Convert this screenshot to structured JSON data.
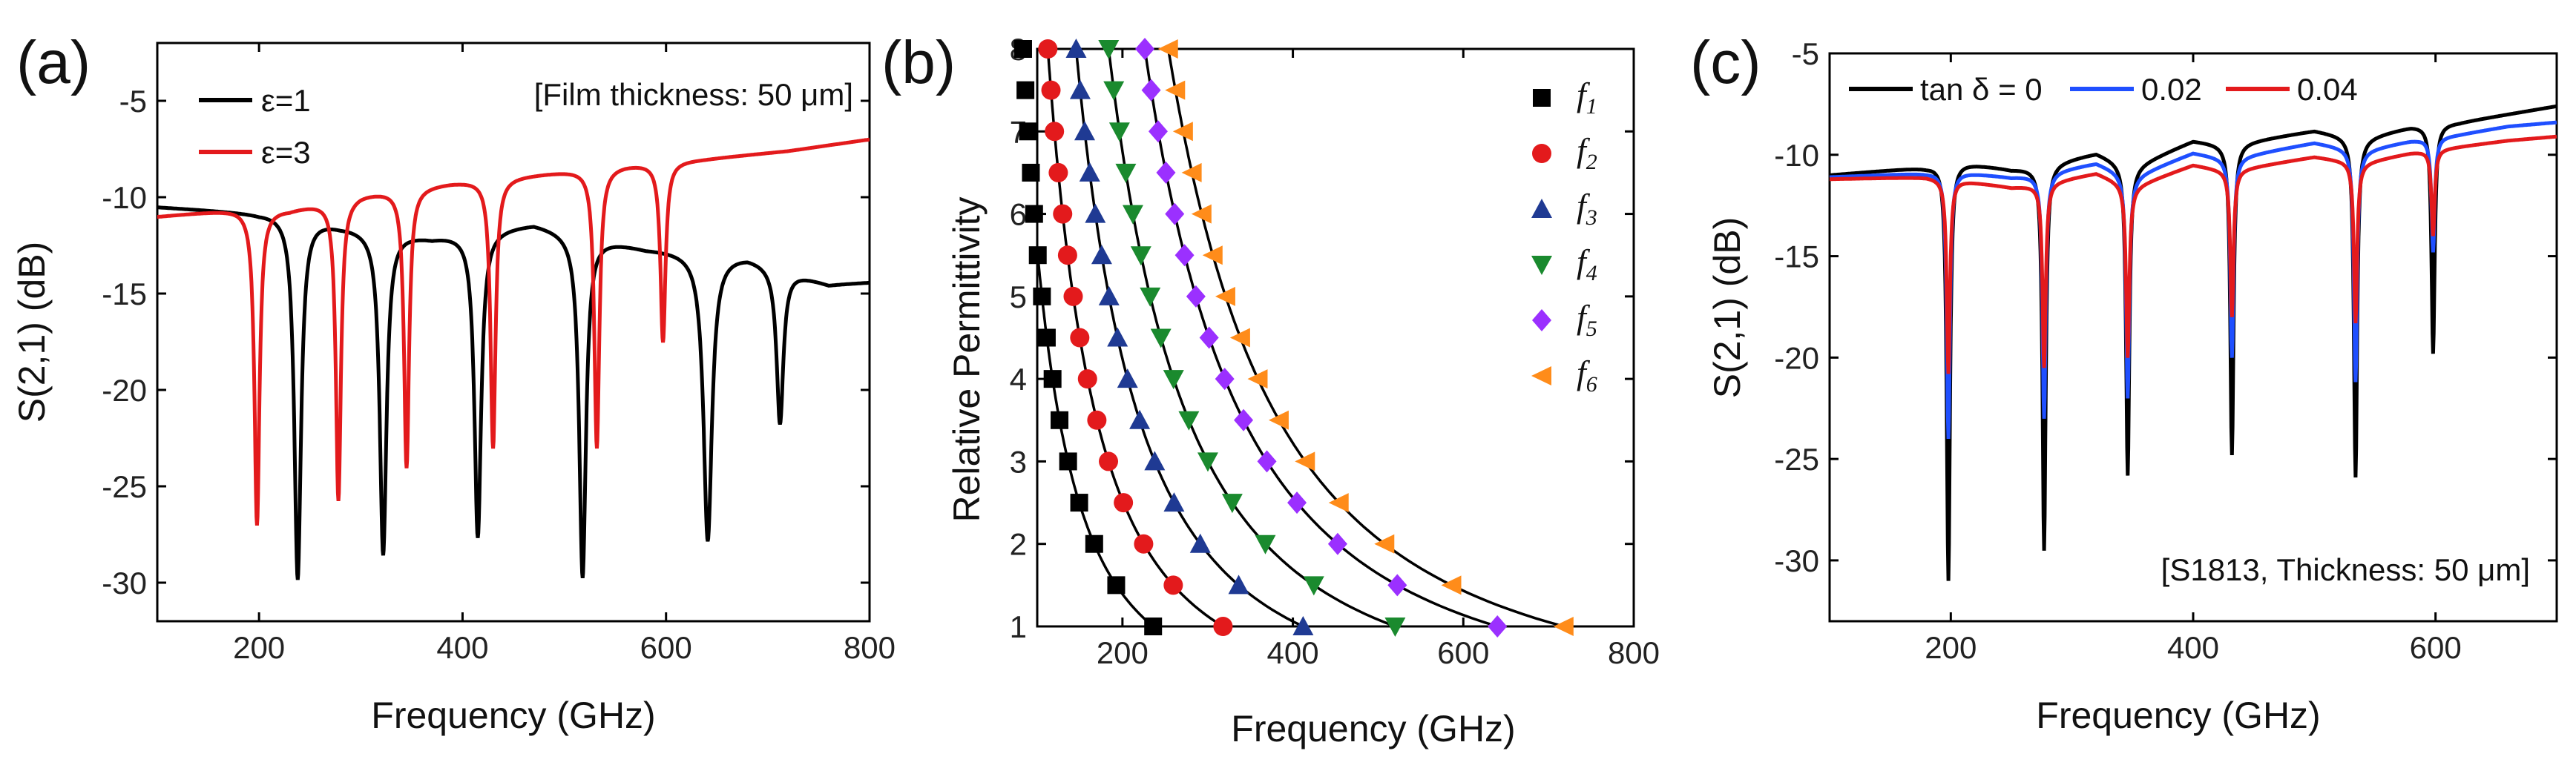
{
  "chart_data": [
    {
      "panel": "(a)",
      "type": "line",
      "xlabel": "Frequency (GHz)",
      "ylabel": "S(2,1) (dB)",
      "xlim": [
        100,
        800
      ],
      "ylim": [
        -32,
        -2
      ],
      "xticks": [
        200,
        400,
        600,
        800
      ],
      "yticks": [
        -30,
        -25,
        -20,
        -15,
        -10,
        -5
      ],
      "annotation": "[Film thickness: 50 μm]",
      "legend_position": "top-left",
      "series": [
        {
          "name": "ε=1",
          "color": "#000000",
          "base": [
            [
              100,
              -10.5
            ],
            [
              200,
              -10.8
            ],
            [
              230,
              -10.7
            ],
            [
              280,
              -11.4
            ],
            [
              370,
              -12.0
            ],
            [
              470,
              -11.3
            ],
            [
              580,
              -12.6
            ],
            [
              680,
              -13.0
            ],
            [
              760,
              -14.5
            ],
            [
              800,
              -14.4
            ]
          ],
          "dips": [
            [
              238,
              -29.8,
              4
            ],
            [
              322,
              -28.5,
              4
            ],
            [
              415,
              -27.6,
              4
            ],
            [
              518,
              -29.7,
              4
            ],
            [
              641,
              -27.8,
              5
            ],
            [
              712,
              -21.7,
              4
            ]
          ]
        },
        {
          "name": "ε=3",
          "color": "#e31a1c",
          "base": [
            [
              100,
              -11.0
            ],
            [
              180,
              -10.6
            ],
            [
              230,
              -10.6
            ],
            [
              300,
              -9.8
            ],
            [
              390,
              -9.2
            ],
            [
              470,
              -8.8
            ],
            [
              560,
              -8.3
            ],
            [
              640,
              -8.0
            ],
            [
              720,
              -7.6
            ],
            [
              800,
              -7.0
            ]
          ],
          "dips": [
            [
              198,
              -27.0,
              3
            ],
            [
              278,
              -25.7,
              3
            ],
            [
              345,
              -24.0,
              3
            ],
            [
              430,
              -23.0,
              3
            ],
            [
              532,
              -23.0,
              3
            ],
            [
              597,
              -17.5,
              3
            ]
          ]
        }
      ]
    },
    {
      "panel": "(b)",
      "type": "scatter",
      "xlabel": "Frequency (GHz)",
      "ylabel": "Relative Permittivity",
      "xlim": [
        100,
        800
      ],
      "ylim": [
        1,
        8
      ],
      "xticks": [
        200,
        400,
        600,
        800
      ],
      "yticks": [
        1,
        2,
        3,
        4,
        5,
        6,
        7,
        8
      ],
      "eps": [
        1.0,
        1.5,
        2.0,
        2.5,
        3.0,
        3.5,
        4.0,
        4.5,
        5.0,
        5.5,
        6.0,
        6.5,
        7.0,
        7.5,
        8.0
      ],
      "fit_line_color": "#000000",
      "legend_position": "top-right",
      "series": [
        {
          "name": "f",
          "sub": "1",
          "marker": "square",
          "color": "#000000",
          "base_freq": 236
        },
        {
          "name": "f",
          "sub": "2",
          "marker": "circle",
          "color": "#e31a1c",
          "base_freq": 318
        },
        {
          "name": "f",
          "sub": "3",
          "marker": "triangle-up",
          "color": "#1f3a93",
          "base_freq": 412
        },
        {
          "name": "f",
          "sub": "4",
          "marker": "triangle-down",
          "color": "#1a8a2e",
          "base_freq": 520
        },
        {
          "name": "f",
          "sub": "5",
          "marker": "diamond",
          "color": "#9b30ff",
          "base_freq": 640
        },
        {
          "name": "f",
          "sub": "6",
          "marker": "triangle-left",
          "color": "#ff8c1a",
          "base_freq": 718
        }
      ]
    },
    {
      "panel": "(c)",
      "type": "line",
      "xlabel": "Frequency (GHz)",
      "ylabel": "S(2,1) (dB)",
      "xlim": [
        100,
        700
      ],
      "ylim": [
        -33,
        -5
      ],
      "xticks": [
        200,
        400,
        600
      ],
      "yticks": [
        -30,
        -25,
        -20,
        -15,
        -10,
        -5
      ],
      "annotation": "[S1813, Thickness: 50 μm]",
      "legend_position": "top",
      "dip_freqs": [
        198,
        277,
        346,
        432,
        534,
        598
      ],
      "series": [
        {
          "name": "tan δ = 0",
          "color": "#000000",
          "base": [
            [
              100,
              -11.0
            ],
            [
              180,
              -10.6
            ],
            [
              200,
              -10.3
            ],
            [
              250,
              -10.7
            ],
            [
              270,
              -10.6
            ],
            [
              320,
              -9.9
            ],
            [
              350,
              -10.6
            ],
            [
              400,
              -9.3
            ],
            [
              430,
              -9.5
            ],
            [
              500,
              -8.8
            ],
            [
              540,
              -9.2
            ],
            [
              580,
              -8.6
            ],
            [
              620,
              -8.4
            ],
            [
              660,
              -8.0
            ],
            [
              700,
              -7.6
            ]
          ],
          "depths": [
            -31.0,
            -29.5,
            -25.8,
            -24.8,
            -25.9,
            -19.8
          ]
        },
        {
          "name": "0.02",
          "color": "#1f4fff",
          "base": [
            [
              100,
              -11.1
            ],
            [
              180,
              -10.9
            ],
            [
              200,
              -10.8
            ],
            [
              250,
              -11.1
            ],
            [
              270,
              -11.0
            ],
            [
              320,
              -10.4
            ],
            [
              350,
              -11.1
            ],
            [
              400,
              -9.9
            ],
            [
              430,
              -10.2
            ],
            [
              500,
              -9.4
            ],
            [
              540,
              -9.8
            ],
            [
              580,
              -9.3
            ],
            [
              620,
              -9.0
            ],
            [
              660,
              -8.6
            ],
            [
              700,
              -8.4
            ]
          ],
          "depths": [
            -24.0,
            -23.0,
            -22.0,
            -20.0,
            -21.2,
            -14.8
          ]
        },
        {
          "name": "0.04",
          "color": "#e31a1c",
          "base": [
            [
              100,
              -11.2
            ],
            [
              180,
              -11.1
            ],
            [
              200,
              -11.2
            ],
            [
              250,
              -11.6
            ],
            [
              270,
              -11.5
            ],
            [
              320,
              -10.9
            ],
            [
              350,
              -11.6
            ],
            [
              400,
              -10.5
            ],
            [
              430,
              -10.8
            ],
            [
              500,
              -10.1
            ],
            [
              540,
              -10.4
            ],
            [
              580,
              -9.9
            ],
            [
              620,
              -9.6
            ],
            [
              660,
              -9.3
            ],
            [
              700,
              -9.1
            ]
          ],
          "depths": [
            -20.8,
            -20.5,
            -20.0,
            -18.0,
            -18.3,
            -14.0
          ]
        }
      ]
    }
  ]
}
